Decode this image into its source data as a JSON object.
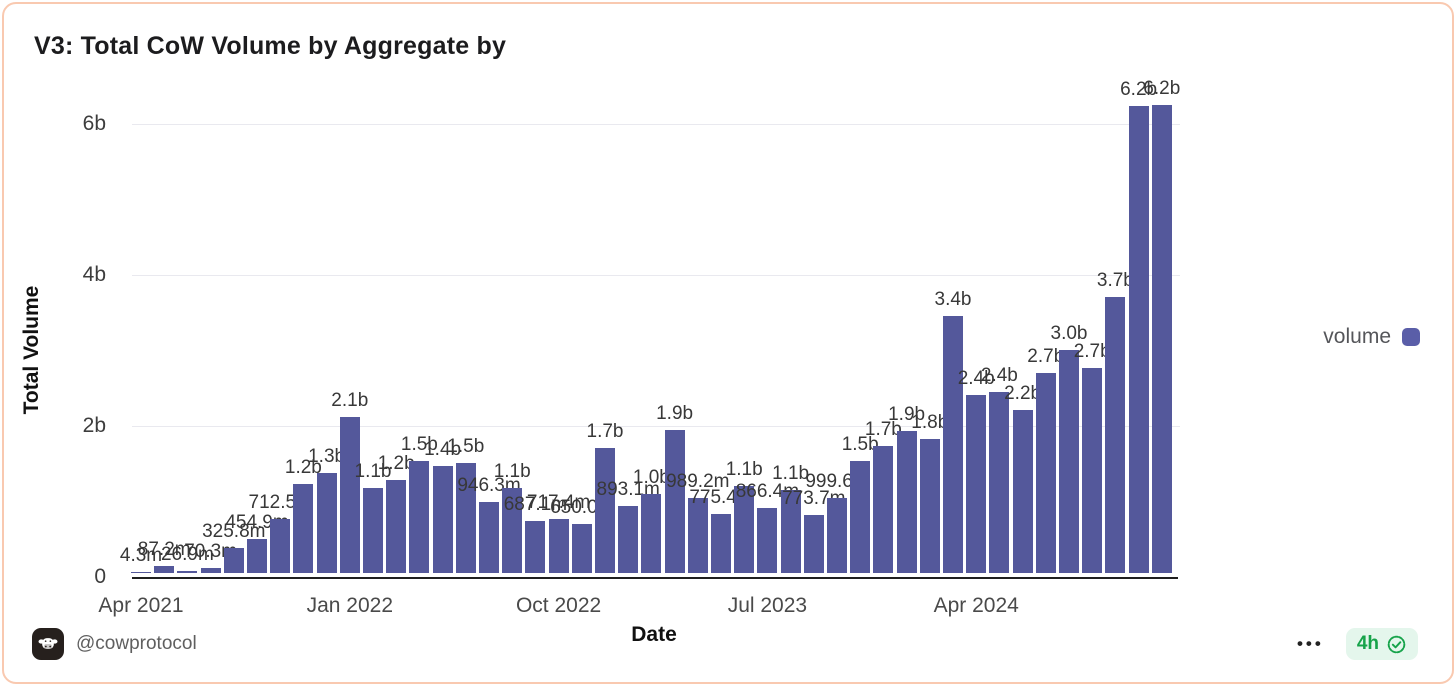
{
  "card": {
    "title": "V3: Total CoW Volume by Aggregate by",
    "border_color": "#f9c9b0"
  },
  "footer": {
    "handle": "@cowprotocol",
    "avatar_icon": "cow-face-icon",
    "menu_label": "•••",
    "badge_text": "4h",
    "badge_icon": "verified-check-icon",
    "badge_color": "#16a34a"
  },
  "chart_data": {
    "type": "bar",
    "title": "V3: Total CoW Volume by Aggregate by",
    "xlabel": "Date",
    "ylabel": "Total Volume",
    "legend_position": "right",
    "grid": true,
    "bar_color": "#54589b",
    "ylim_b": [
      0,
      6.6
    ],
    "series_name": "volume",
    "legend": [
      {
        "label": "volume",
        "color": "#5a5ea8"
      }
    ],
    "y_ticks": [
      {
        "label": "0",
        "value_b": 0
      },
      {
        "label": "2b",
        "value_b": 2
      },
      {
        "label": "4b",
        "value_b": 4
      },
      {
        "label": "6b",
        "value_b": 6
      }
    ],
    "x_ticks": [
      {
        "label": "Apr 2021",
        "index": 0
      },
      {
        "label": "Jan 2022",
        "index": 9
      },
      {
        "label": "Oct 2022",
        "index": 18
      },
      {
        "label": "Jul 2023",
        "index": 27
      },
      {
        "label": "Apr 2024",
        "index": 36
      }
    ],
    "points": [
      {
        "month": "Apr 2021",
        "label": "4.3m",
        "value_b": 0.0043
      },
      {
        "month": "May 2021",
        "label": "87.2m",
        "value_b": 0.0872
      },
      {
        "month": "Jun 2021",
        "label": "26.9m",
        "value_b": 0.0269
      },
      {
        "month": "Jul 2021",
        "label": "70.3m",
        "value_b": 0.0703
      },
      {
        "month": "Aug 2021",
        "label": "325.8m",
        "value_b": 0.3258
      },
      {
        "month": "Sep 2021",
        "label": "454.9m",
        "value_b": 0.4549
      },
      {
        "month": "Oct 2021",
        "label": "712.5m",
        "value_b": 0.7125
      },
      {
        "month": "Nov 2021",
        "label": "1.2b",
        "value_b": 1.18
      },
      {
        "month": "Dec 2021",
        "label": "1.3b",
        "value_b": 1.32
      },
      {
        "month": "Jan 2022",
        "label": "2.1b",
        "value_b": 2.07
      },
      {
        "month": "Feb 2022",
        "label": "1.1b",
        "value_b": 1.12
      },
      {
        "month": "Mar 2022",
        "label": "1.2b",
        "value_b": 1.23
      },
      {
        "month": "Apr 2022",
        "label": "1.5b",
        "value_b": 1.48
      },
      {
        "month": "May 2022",
        "label": "1.4b",
        "value_b": 1.42
      },
      {
        "month": "Jun 2022",
        "label": "1.5b",
        "value_b": 1.46
      },
      {
        "month": "Jul 2022",
        "label": "946.3m",
        "value_b": 0.9463
      },
      {
        "month": "Aug 2022",
        "label": "1.1b",
        "value_b": 1.13
      },
      {
        "month": "Sep 2022",
        "label": "687.1m",
        "value_b": 0.6871
      },
      {
        "month": "Oct 2022",
        "label": "717.4m",
        "value_b": 0.7174
      },
      {
        "month": "Nov 2022",
        "label": "650.0m",
        "value_b": 0.65
      },
      {
        "month": "Dec 2022",
        "label": "1.7b",
        "value_b": 1.65
      },
      {
        "month": "Jan 2023",
        "label": "893.1m",
        "value_b": 0.8931
      },
      {
        "month": "Feb 2023",
        "label": "1.0b",
        "value_b": 1.05
      },
      {
        "month": "Mar 2023",
        "label": "1.9b",
        "value_b": 1.89
      },
      {
        "month": "Apr 2023",
        "label": "989.2m",
        "value_b": 0.9892
      },
      {
        "month": "May 2023",
        "label": "775.4m",
        "value_b": 0.7754
      },
      {
        "month": "Jun 2023",
        "label": "1.1b",
        "value_b": 1.15
      },
      {
        "month": "Jul 2023",
        "label": "866.4m",
        "value_b": 0.8664
      },
      {
        "month": "Aug 2023",
        "label": "1.1b",
        "value_b": 1.1
      },
      {
        "month": "Sep 2023",
        "label": "773.7m",
        "value_b": 0.7737
      },
      {
        "month": "Oct 2023",
        "label": "999.6m",
        "value_b": 0.9996
      },
      {
        "month": "Nov 2023",
        "label": "1.5b",
        "value_b": 1.49
      },
      {
        "month": "Dec 2023",
        "label": "1.7b",
        "value_b": 1.68
      },
      {
        "month": "Jan 2024",
        "label": "1.9b",
        "value_b": 1.88
      },
      {
        "month": "Feb 2024",
        "label": "1.8b",
        "value_b": 1.78
      },
      {
        "month": "Mar 2024",
        "label": "3.4b",
        "value_b": 3.4
      },
      {
        "month": "Apr 2024",
        "label": "2.4b",
        "value_b": 2.36
      },
      {
        "month": "May 2024",
        "label": "2.4b",
        "value_b": 2.4
      },
      {
        "month": "Jun 2024",
        "label": "2.2b",
        "value_b": 2.16
      },
      {
        "month": "Jul 2024",
        "label": "2.7b",
        "value_b": 2.65
      },
      {
        "month": "Aug 2024",
        "label": "3.0b",
        "value_b": 2.95
      },
      {
        "month": "Sep 2024",
        "label": "2.7b",
        "value_b": 2.72
      },
      {
        "month": "Oct 2024",
        "label": "3.7b",
        "value_b": 3.65
      },
      {
        "month": "Nov 2024",
        "label": "6.2b",
        "value_b": 6.18
      },
      {
        "month": "Dec 2024",
        "label": "6.2b",
        "value_b": 6.2
      }
    ]
  }
}
